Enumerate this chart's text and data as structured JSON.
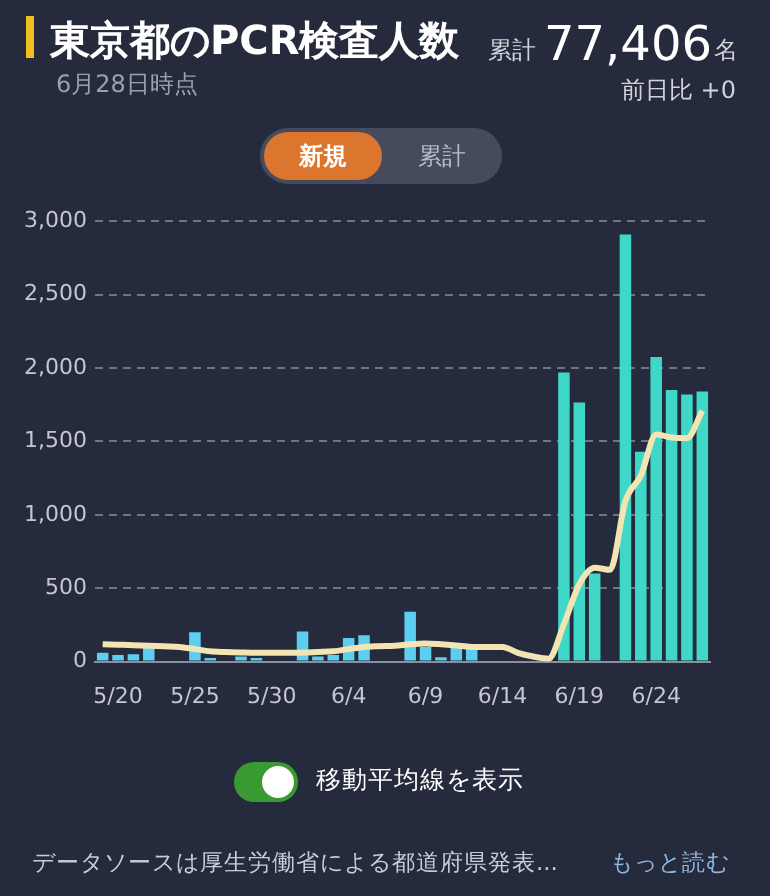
{
  "chart_data": {
    "type": "bar",
    "title": "東京都のPCR検査人数",
    "subtitle": "6月28日時点",
    "annotations": [
      "累計",
      "77,406",
      "名",
      "前日比 +0",
      "新規",
      "累計",
      "移動平均線を表示",
      "データソースは厚生労働省による都道府県発表...",
      "もっと読む"
    ],
    "categories": [
      null,
      "5/20",
      null,
      null,
      null,
      null,
      "5/25",
      null,
      null,
      null,
      null,
      "5/30",
      null,
      null,
      null,
      null,
      "6/4",
      null,
      null,
      null,
      null,
      "6/9",
      null,
      null,
      null,
      null,
      "6/14",
      null,
      null,
      null,
      null,
      "6/19",
      null,
      null,
      null,
      null,
      "6/24",
      null,
      null,
      null
    ],
    "series": [
      {
        "colors": [
          "#5ccff0",
          "#5ccff0",
          "#5ccff0",
          "#5ccff0",
          "#5ccff0",
          "#5ccff0",
          "#5ccff0",
          "#5ccff0",
          "#5ccff0",
          "#5ccff0",
          "#5ccff0",
          "#5ccff0",
          "#5ccff0",
          "#5ccff0",
          "#5ccff0",
          "#5ccff0",
          "#5ccff0",
          "#5ccff0",
          "#5ccff0",
          "#5ccff0",
          "#5ccff0",
          "#5ccff0",
          "#5ccff0",
          "#5ccff0",
          "#5ccff0",
          "#5ccff0",
          "#5ccff0",
          "#5ccff0",
          "#5ccff0",
          "#5ccff0",
          "#3fd8c8",
          "#3fd8c8",
          "#3fd8c8",
          "#3fd8c8",
          "#3fd8c8",
          "#3fd8c8",
          "#3fd8c8",
          "#3fd8c8",
          "#3fd8c8",
          "#3fd8c8"
        ],
        "values": [
          60,
          45,
          50,
          95,
          0,
          0,
          200,
          25,
          0,
          35,
          25,
          0,
          0,
          205,
          35,
          45,
          160,
          180,
          0,
          0,
          340,
          100,
          30,
          100,
          100,
          0,
          0,
          0,
          0,
          0,
          1970,
          1765,
          600,
          0,
          2910,
          1430,
          2075,
          1850,
          1820,
          1840
        ]
      },
      {
        "type": "line",
        "color": "#f3e4b4",
        "values": [
          118,
          115,
          112,
          108,
          104,
          100,
          85,
          70,
          65,
          62,
          60,
          60,
          60,
          60,
          65,
          70,
          85,
          100,
          105,
          108,
          118,
          123,
          118,
          110,
          100,
          100,
          100,
          60,
          35,
          20,
          255,
          527,
          640,
          625,
          1094,
          1266,
          1547,
          1527,
          1522,
          1709
        ]
      }
    ],
    "ylim": [
      0,
      3000
    ],
    "yticks": [
      0,
      {
        "value": 500,
        "label": "500"
      },
      {
        "value": 1000,
        "label": "1,000"
      },
      {
        "value": 1500,
        "label": "1,500"
      },
      {
        "value": 2000,
        "label": "2,000"
      },
      {
        "value": 2500,
        "label": "2,500"
      },
      {
        "value": 3000,
        "label": "3,000"
      }
    ],
    "grid": "y",
    "legend": false,
    "marker": "none",
    "line_style": "solid"
  }
}
